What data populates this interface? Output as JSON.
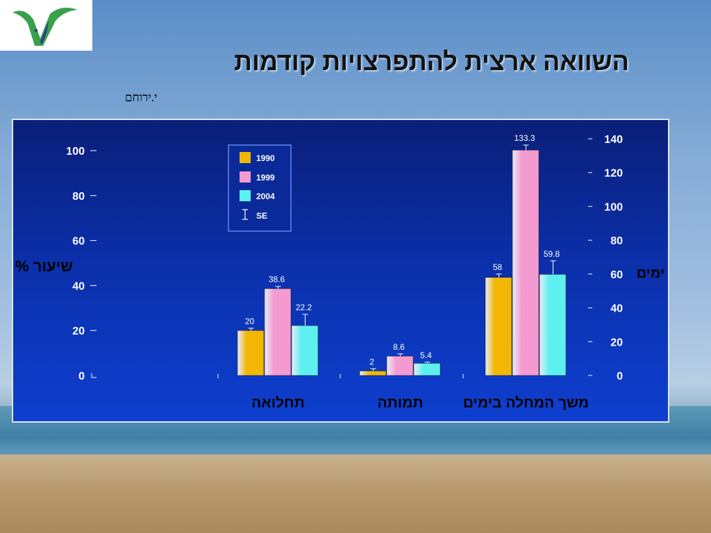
{
  "slide": {
    "title": "השוואה ארצית להתפרצויות קודמות",
    "subnote": "י.ירוחם"
  },
  "colors": {
    "panel_blue": "#0b2fa8",
    "series_1990": "#f2b705",
    "series_1999": "#f39ad0",
    "series_2004": "#5ef0f0"
  },
  "chart_data": {
    "type": "bar",
    "left_axis": {
      "label": "שיעור %",
      "ticks": [
        "0",
        "20",
        "40",
        "60",
        "80",
        "100"
      ],
      "ylim": [
        0,
        100
      ]
    },
    "right_axis": {
      "label": "ימים",
      "ticks": [
        "0",
        "20",
        "40",
        "60",
        "80",
        "100",
        "120",
        "140"
      ],
      "ylim": [
        0,
        140
      ]
    },
    "categories": [
      "תחלואה",
      "תמותה",
      "משך  המחלה בימים"
    ],
    "category_axis": [
      "left",
      "left",
      "right"
    ],
    "series": [
      {
        "name": "1990",
        "color": "#f2b705",
        "values": [
          20,
          2,
          58
        ],
        "labels": [
          "20",
          "2",
          "58"
        ],
        "se": [
          1,
          1,
          2
        ]
      },
      {
        "name": "1999",
        "color": "#f39ad0",
        "values": [
          38.6,
          8.6,
          133.3
        ],
        "labels": [
          "38.6",
          "8.6",
          "133.3"
        ],
        "se": [
          1,
          1,
          3
        ]
      },
      {
        "name": "2004",
        "color": "#5ef0f0",
        "values": [
          22.2,
          5.4,
          59.8
        ],
        "labels": [
          "22.2",
          "5.4",
          "59.8"
        ],
        "se": [
          5,
          0.5,
          8
        ]
      }
    ],
    "legend": {
      "items": [
        "1990",
        "1999",
        "2004"
      ],
      "se_label": "SE",
      "position": "top-left"
    },
    "grid": false
  }
}
